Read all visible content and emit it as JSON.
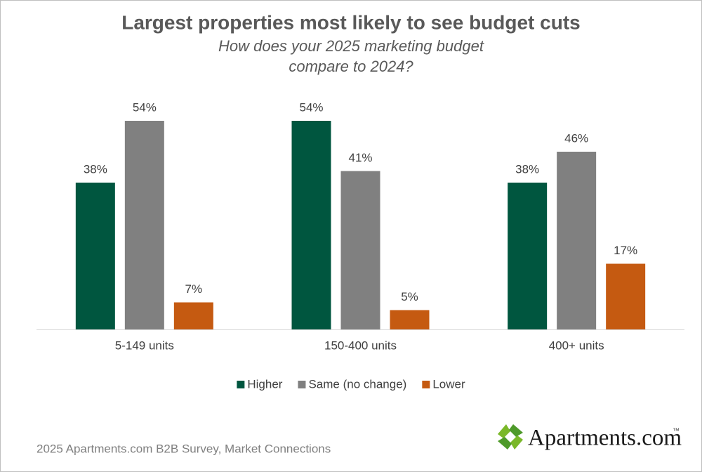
{
  "chart_data": {
    "type": "bar",
    "title": "Largest properties most likely to see budget cuts",
    "subtitle": [
      "How does your 2025 marketing budget",
      "compare to 2024?"
    ],
    "categories": [
      "5-149 units",
      "150-400 units",
      "400+ units"
    ],
    "series": [
      {
        "name": "Higher",
        "color": "#00563f",
        "values": [
          38,
          54,
          38
        ],
        "value_labels": [
          "38%",
          "54%",
          "38%"
        ]
      },
      {
        "name": "Same (no change)",
        "color": "#808080",
        "values": [
          54,
          41,
          46
        ],
        "value_labels": [
          "54%",
          "41%",
          "46%"
        ]
      },
      {
        "name": "Lower",
        "color": "#c55a11",
        "values": [
          7,
          5,
          17
        ],
        "value_labels": [
          "7%",
          "5%",
          "17%"
        ]
      }
    ],
    "legend": "bottom",
    "source": "2025 Apartments.com B2B Survey, Market Connections",
    "logo": "Apartments.com",
    "logo_mark": "™"
  }
}
